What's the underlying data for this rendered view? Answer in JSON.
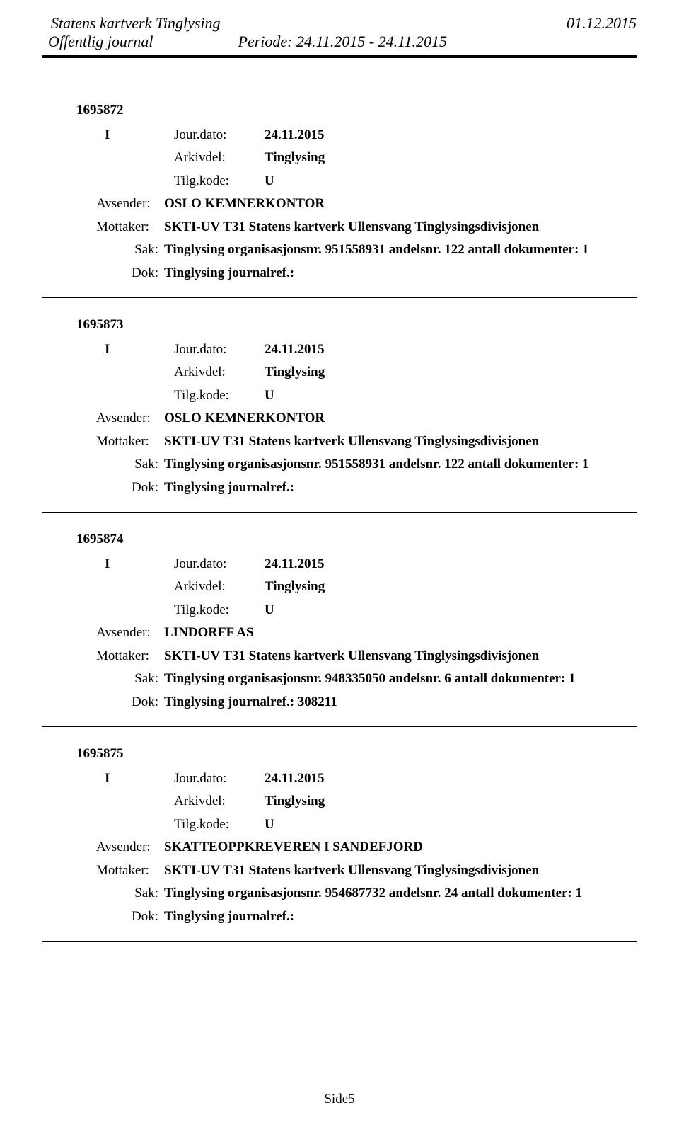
{
  "header": {
    "title_left": "Statens kartverk Tinglysing",
    "title_right": "01.12.2015",
    "subtitle_left": "Offentlig journal",
    "periode": "Periode: 24.11.2015 - 24.11.2015"
  },
  "entries": [
    {
      "id": "1695872",
      "type": "I",
      "jour_label": "Jour.dato:",
      "jour_value": "24.11.2015",
      "arkiv_label": "Arkivdel:",
      "arkiv_value": "Tinglysing",
      "tilg_label": "Tilg.kode:",
      "tilg_value": "U",
      "avsender_label": "Avsender:",
      "avsender_value": "OSLO KEMNERKONTOR",
      "mottaker_label": "Mottaker:",
      "mottaker_value": "SKTI-UV T31 Statens kartverk Ullensvang Tinglysingsdivisjonen",
      "sak_label": "Sak:",
      "sak_value": "Tinglysing organisasjonsnr. 951558931 andelsnr. 122 antall dokumenter: 1",
      "dok_label": "Dok:",
      "dok_value": "Tinglysing journalref.:"
    },
    {
      "id": "1695873",
      "type": "I",
      "jour_label": "Jour.dato:",
      "jour_value": "24.11.2015",
      "arkiv_label": "Arkivdel:",
      "arkiv_value": "Tinglysing",
      "tilg_label": "Tilg.kode:",
      "tilg_value": "U",
      "avsender_label": "Avsender:",
      "avsender_value": "OSLO KEMNERKONTOR",
      "mottaker_label": "Mottaker:",
      "mottaker_value": "SKTI-UV T31 Statens kartverk Ullensvang Tinglysingsdivisjonen",
      "sak_label": "Sak:",
      "sak_value": "Tinglysing organisasjonsnr. 951558931 andelsnr. 122 antall dokumenter: 1",
      "dok_label": "Dok:",
      "dok_value": "Tinglysing journalref.:"
    },
    {
      "id": "1695874",
      "type": "I",
      "jour_label": "Jour.dato:",
      "jour_value": "24.11.2015",
      "arkiv_label": "Arkivdel:",
      "arkiv_value": "Tinglysing",
      "tilg_label": "Tilg.kode:",
      "tilg_value": "U",
      "avsender_label": "Avsender:",
      "avsender_value": "LINDORFF AS",
      "mottaker_label": "Mottaker:",
      "mottaker_value": "SKTI-UV T31 Statens kartverk Ullensvang Tinglysingsdivisjonen",
      "sak_label": "Sak:",
      "sak_value": "Tinglysing organisasjonsnr. 948335050 andelsnr. 6 antall dokumenter: 1",
      "dok_label": "Dok:",
      "dok_value": "Tinglysing journalref.: 308211"
    },
    {
      "id": "1695875",
      "type": "I",
      "jour_label": "Jour.dato:",
      "jour_value": "24.11.2015",
      "arkiv_label": "Arkivdel:",
      "arkiv_value": "Tinglysing",
      "tilg_label": "Tilg.kode:",
      "tilg_value": "U",
      "avsender_label": "Avsender:",
      "avsender_value": "SKATTEOPPKREVEREN I SANDEFJORD",
      "mottaker_label": "Mottaker:",
      "mottaker_value": "SKTI-UV T31 Statens kartverk Ullensvang Tinglysingsdivisjonen",
      "sak_label": "Sak:",
      "sak_value": "Tinglysing organisasjonsnr. 954687732 andelsnr. 24 antall dokumenter: 1",
      "dok_label": "Dok:",
      "dok_value": "Tinglysing journalref.:"
    }
  ],
  "footer": {
    "page": "Side5"
  }
}
